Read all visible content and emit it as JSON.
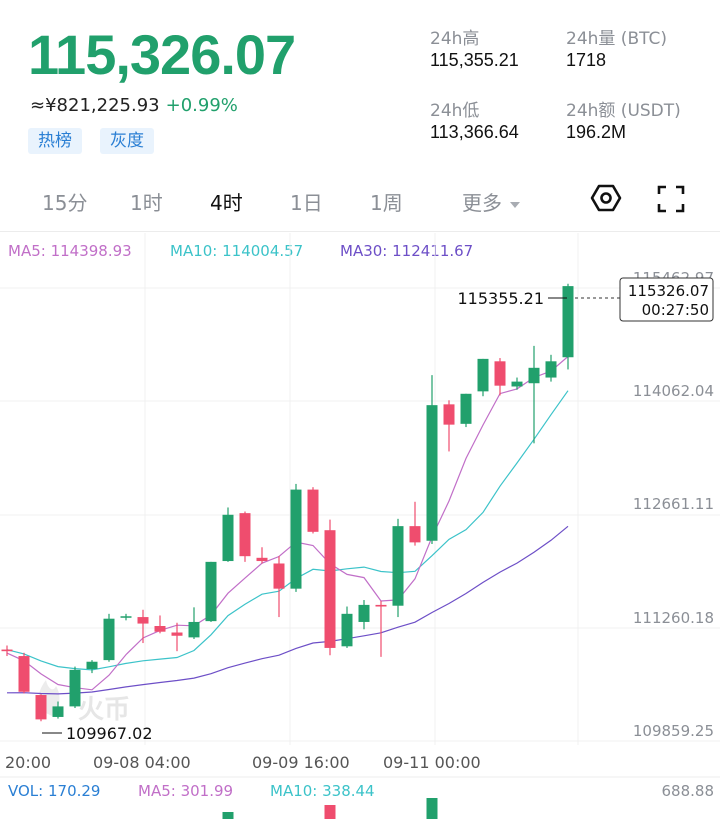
{
  "header": {
    "last_price": "115,326.07",
    "cny_value": "≈¥821,225.93",
    "change_pct": "+0.99%",
    "tags": [
      "热榜",
      "灰度"
    ],
    "stats": {
      "high_label": "24h高",
      "high_value": "115,355.21",
      "low_label": "24h低",
      "low_value": "113,366.64",
      "vol_label": "24h量 (BTC)",
      "vol_value": "1718",
      "amt_label": "24h额 (USDT)",
      "amt_value": "196.2M"
    },
    "colors": {
      "up": "#21a06c",
      "down": "#ef4d6e"
    }
  },
  "tabs": {
    "items": [
      "15分",
      "1时",
      "4时",
      "1日",
      "1周"
    ],
    "active": "4时",
    "more_label": "更多",
    "icons": [
      "settings-hex-icon",
      "fullscreen-icon"
    ]
  },
  "chart_data": {
    "type": "candlestick",
    "ma": {
      "ma5_label": "MA5: 114398.93",
      "ma10_label": "MA10: 114004.57",
      "ma30_label": "MA30: 112411.67",
      "colors": {
        "ma5": "#c16fc8",
        "ma10": "#3cc3c9",
        "ma30": "#6d4fc7"
      }
    },
    "price_axis": [
      "115462.97",
      "114062.04",
      "112661.11",
      "111260.18",
      "109859.25"
    ],
    "ylim": [
      109859.25,
      115462.97
    ],
    "time_axis": [
      "20:00",
      "09-08 04:00",
      "09-09 16:00",
      "09-11 00:00"
    ],
    "high_marker": "115355.21",
    "low_marker": "109967.02",
    "current_price_box": {
      "price": "115326.07",
      "countdown": "00:27:50"
    },
    "watermark": "火币",
    "candles": [
      {
        "o": 110850,
        "h": 110900,
        "l": 110770,
        "c": 110830
      },
      {
        "o": 110770,
        "h": 110810,
        "l": 110310,
        "c": 110330
      },
      {
        "o": 110290,
        "h": 110300,
        "l": 109967.02,
        "c": 109990
      },
      {
        "o": 110020,
        "h": 110210,
        "l": 110000,
        "c": 110150
      },
      {
        "o": 110150,
        "h": 110640,
        "l": 110130,
        "c": 110600
      },
      {
        "o": 110610,
        "h": 110720,
        "l": 110560,
        "c": 110700
      },
      {
        "o": 110720,
        "h": 111290,
        "l": 110700,
        "c": 111230
      },
      {
        "o": 111250,
        "h": 111290,
        "l": 111210,
        "c": 111260
      },
      {
        "o": 111250,
        "h": 111340,
        "l": 110930,
        "c": 111170
      },
      {
        "o": 111140,
        "h": 111270,
        "l": 111050,
        "c": 111070
      },
      {
        "o": 111060,
        "h": 111180,
        "l": 110830,
        "c": 111020
      },
      {
        "o": 111000,
        "h": 111370,
        "l": 110980,
        "c": 111190
      },
      {
        "o": 111200,
        "h": 111930,
        "l": 111190,
        "c": 111930
      },
      {
        "o": 111940,
        "h": 112600,
        "l": 111930,
        "c": 112510
      },
      {
        "o": 112530,
        "h": 112550,
        "l": 111930,
        "c": 112000
      },
      {
        "o": 111980,
        "h": 112110,
        "l": 111910,
        "c": 111940
      },
      {
        "o": 111910,
        "h": 112000,
        "l": 111250,
        "c": 111600
      },
      {
        "o": 111600,
        "h": 112890,
        "l": 111560,
        "c": 112820
      },
      {
        "o": 112820,
        "h": 112850,
        "l": 112280,
        "c": 112300
      },
      {
        "o": 112320,
        "h": 112450,
        "l": 110780,
        "c": 110870
      },
      {
        "o": 110890,
        "h": 111380,
        "l": 110870,
        "c": 111290
      },
      {
        "o": 111190,
        "h": 111460,
        "l": 111100,
        "c": 111400
      },
      {
        "o": 111400,
        "h": 111450,
        "l": 110760,
        "c": 111380
      },
      {
        "o": 111390,
        "h": 112460,
        "l": 111250,
        "c": 112370
      },
      {
        "o": 112370,
        "h": 112670,
        "l": 112130,
        "c": 112170
      },
      {
        "o": 112190,
        "h": 114230,
        "l": 112150,
        "c": 113860
      },
      {
        "o": 113870,
        "h": 113920,
        "l": 113290,
        "c": 113620
      },
      {
        "o": 113630,
        "h": 114000,
        "l": 113590,
        "c": 114000
      },
      {
        "o": 114030,
        "h": 114430,
        "l": 113970,
        "c": 114430
      },
      {
        "o": 114400,
        "h": 114440,
        "l": 113980,
        "c": 114100
      },
      {
        "o": 114090,
        "h": 114200,
        "l": 114050,
        "c": 114150
      },
      {
        "o": 114130,
        "h": 114590,
        "l": 113390,
        "c": 114320
      },
      {
        "o": 114200,
        "h": 114480,
        "l": 114150,
        "c": 114400
      },
      {
        "o": 114450,
        "h": 115355.21,
        "l": 114300,
        "c": 115326.07
      }
    ],
    "volume": {
      "vol_label": "VOL: 170.29",
      "ma5_label": "MA5: 301.99",
      "ma10_label": "MA10: 338.44",
      "axis_max": "688.88"
    }
  }
}
